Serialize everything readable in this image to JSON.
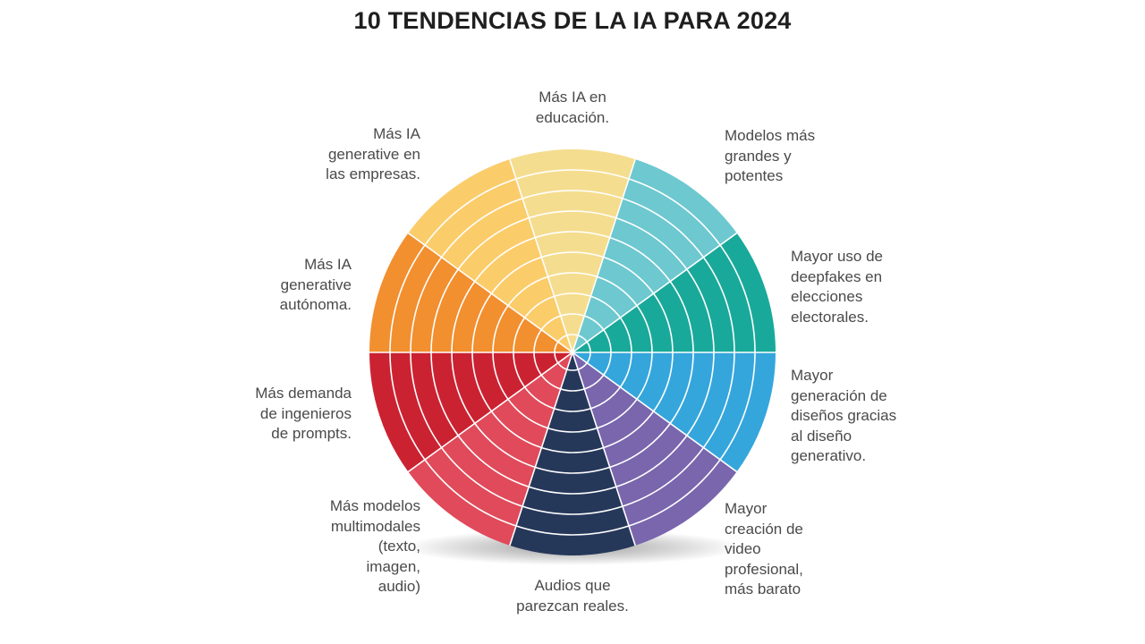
{
  "title": "10 TENDENCIAS DE LA IA PARA 2024",
  "segments": [
    {
      "lines": [
        "Más IA  en",
        "educación."
      ],
      "color": "#f5dd8f"
    },
    {
      "lines": [
        "Modelos más",
        "grandes y",
        "potentes"
      ],
      "color": "#6dc8d0"
    },
    {
      "lines": [
        "Mayor uso de",
        "deepfakes en",
        "elecciones",
        "electorales."
      ],
      "color": "#19a99a"
    },
    {
      "lines": [
        "Mayor",
        "generación de",
        "diseños gracias",
        "al diseño",
        "generativo."
      ],
      "color": "#34a6dc"
    },
    {
      "lines": [
        "Mayor",
        "creación de",
        "video",
        "profesional,",
        "más barato"
      ],
      "color": "#7966ad"
    },
    {
      "lines": [
        "Audios que",
        "parezcan reales."
      ],
      "color": "#26385a"
    },
    {
      "lines": [
        "Más modelos",
        "multimodales",
        "(texto,",
        "imagen,",
        "audio)"
      ],
      "color": "#e04a5a"
    },
    {
      "lines": [
        "Más demanda",
        "de ingenieros",
        "de prompts."
      ],
      "color": "#cb2231"
    },
    {
      "lines": [
        "Más IA",
        "generative",
        "autónoma."
      ],
      "color": "#f28f2f"
    },
    {
      "lines": [
        "Más IA",
        "generative en",
        "las empresas."
      ],
      "color": "#fbcc6a"
    }
  ],
  "ring_count": 10
}
